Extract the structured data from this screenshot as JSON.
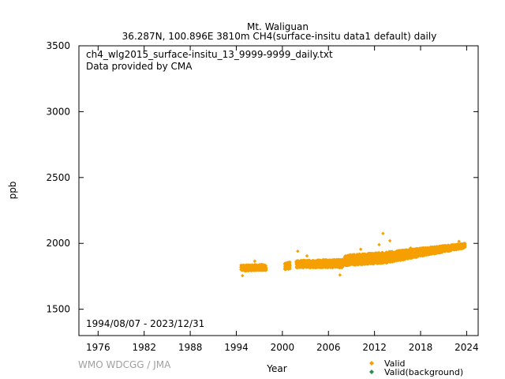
{
  "chart_data": {
    "type": "scatter",
    "title": "Mt. Waliguan",
    "subtitle": "36.287N, 100.896E 3810m    CH4(surface-insitu data1 default) daily",
    "filename": "ch4_wlg2015_surface-insitu_13_9999-9999_daily.txt",
    "provider": "Data provided by CMA",
    "date_range": "1994/08/07 - 2023/12/31",
    "xlabel": "Year",
    "ylabel": "ppb",
    "xlim": [
      1973.5,
      2025.5
    ],
    "ylim": [
      1300,
      3500
    ],
    "xticks": [
      1976,
      1982,
      1988,
      1994,
      2000,
      2006,
      2012,
      2018,
      2024
    ],
    "yticks": [
      1500,
      2000,
      2500,
      3000,
      3500
    ],
    "grid": false,
    "legend_position": "bottom-right",
    "series": [
      {
        "name": "Valid",
        "color": "#f5a000",
        "marker": "diamond",
        "segments": [
          {
            "x": [
              1994.6,
              1997.9
            ],
            "y_low": [
              1790,
              1795
            ],
            "y_high": [
              1835,
              1840
            ]
          },
          {
            "x": [
              2000.3,
              2001.0
            ],
            "y_low": [
              1800,
              1805
            ],
            "y_high": [
              1850,
              1860
            ]
          },
          {
            "x": [
              2001.8,
              2007.9
            ],
            "y_low": [
              1815,
              1815
            ],
            "y_high": [
              1870,
              1880
            ]
          },
          {
            "x": [
              2008.1,
              2013.5
            ],
            "y_low": [
              1830,
              1850
            ],
            "y_high": [
              1910,
              1935
            ]
          },
          {
            "x": [
              2013.5,
              2023.8
            ],
            "y_low": [
              1850,
              1965
            ],
            "y_high": [
              1935,
              2000
            ]
          }
        ],
        "outliers": [
          {
            "x": 1994.8,
            "y": 1755
          },
          {
            "x": 1996.4,
            "y": 1865
          },
          {
            "x": 2002.0,
            "y": 1940
          },
          {
            "x": 2003.2,
            "y": 1905
          },
          {
            "x": 2007.5,
            "y": 1760
          },
          {
            "x": 2010.2,
            "y": 1955
          },
          {
            "x": 2012.6,
            "y": 1990
          },
          {
            "x": 2013.1,
            "y": 2075
          },
          {
            "x": 2014.0,
            "y": 2020
          },
          {
            "x": 2016.7,
            "y": 1965
          },
          {
            "x": 2023.0,
            "y": 2015
          }
        ]
      },
      {
        "name": "Valid(background)",
        "color": "#2e8b57",
        "marker": "diamond",
        "segments": []
      }
    ]
  },
  "footer": {
    "credit": "WMO WDCGG / JMA"
  }
}
